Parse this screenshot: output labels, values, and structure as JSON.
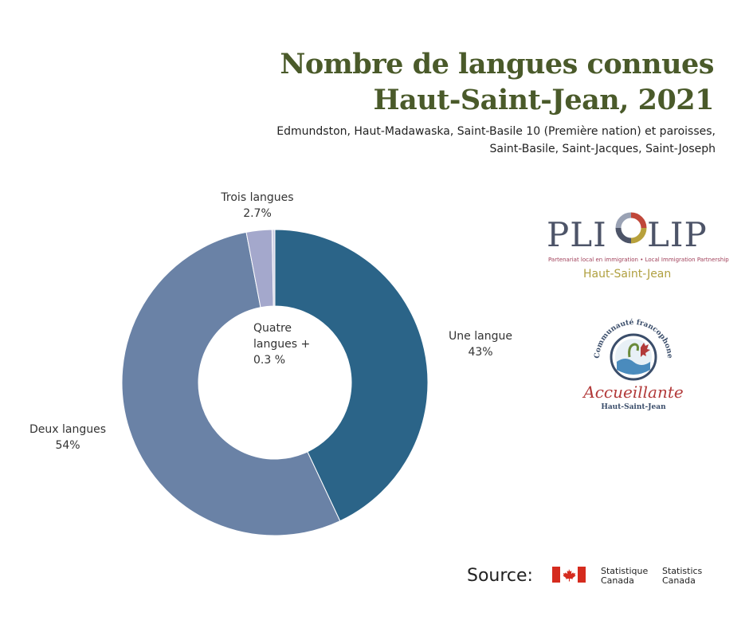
{
  "title_line1": "Nombre de langues connues",
  "title_line2": "Haut-Saint-Jean, 2021",
  "subtitle_line1": "Edmundston, Haut-Madawaska, Saint-Basile 10 (Première nation) et paroisses,",
  "subtitle_line2": "Saint-Basile, Saint-Jacques, Saint-Joseph",
  "chart_data": {
    "type": "pie",
    "donut": true,
    "slices": [
      {
        "name": "Une langue",
        "value": 43,
        "label": "43%",
        "color": "#2b6488"
      },
      {
        "name": "Deux langues",
        "value": 54,
        "label": "54%",
        "color": "#6a82a6"
      },
      {
        "name": "Trois langues",
        "value": 2.7,
        "label": "2.7%",
        "color": "#a4a8cc"
      },
      {
        "name": "Quatre langues +",
        "value": 0.3,
        "label": "0.3 %",
        "color": "#d0d0e6"
      }
    ],
    "center_label_line1": "Quatre",
    "center_label_line2": "langues +",
    "center_label_line3": "0.3 %"
  },
  "logo_pli": {
    "left": "PLI",
    "right": "LIP",
    "tagline": "Partenariat local en immigration • Local Immigration Partnership",
    "region": "Haut-Saint-Jean"
  },
  "logo_communaute": {
    "arc_text": "Communauté francophone",
    "script": "Accueillante",
    "small": "Haut-Saint-Jean"
  },
  "source": {
    "label": "Source:",
    "fr_line1": "Statistique",
    "fr_line2": "Canada",
    "en_line1": "Statistics",
    "en_line2": "Canada"
  }
}
